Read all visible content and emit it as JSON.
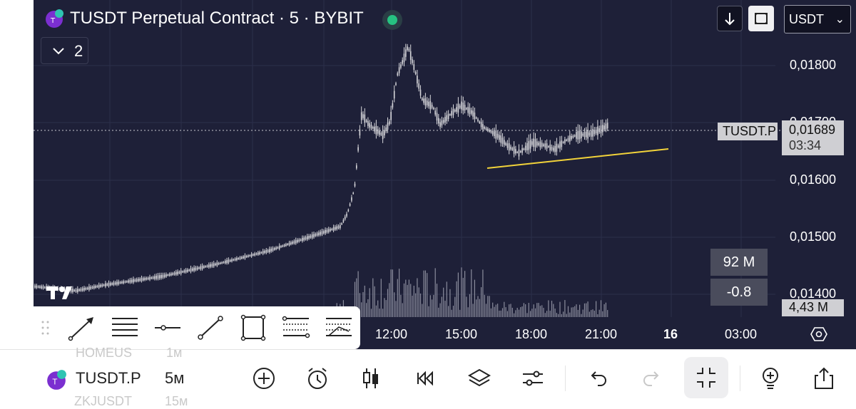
{
  "header": {
    "title": "TUSDT Perpetual Contract · 5 · BYBIT",
    "indicators_count": "2",
    "currency": "USDT"
  },
  "price_axis": {
    "labels": [
      "0,01800",
      "0,01700",
      "0,01600",
      "0,01500",
      "0,01400"
    ]
  },
  "current_price": {
    "symbol_tag": "TUSDT.P",
    "price": "0,01689",
    "countdown": "03:34"
  },
  "volume": {
    "value_box": "92 M",
    "change_box": "-0.8",
    "axis_tag": "4,43 M"
  },
  "time_axis": {
    "labels": [
      {
        "text": "12:00",
        "bold": false
      },
      {
        "text": "15:00",
        "bold": false
      },
      {
        "text": "18:00",
        "bold": false
      },
      {
        "text": "21:00",
        "bold": false
      },
      {
        "text": "16",
        "bold": true
      },
      {
        "text": "03:00",
        "bold": false
      }
    ]
  },
  "drawing_tools": [
    "trend-line",
    "horizontal-lines",
    "horizontal-ray",
    "line-segment",
    "rectangle",
    "fib-retracement",
    "fib-extension"
  ],
  "bottom_bar": {
    "symbol": "TUSDT.P",
    "timeframe": "5м",
    "ghost_symbol_above": "HOMEUS",
    "ghost_tf_above": "1м",
    "ghost_symbol_below": "ZKJUSDT",
    "ghost_tf_below": "15м"
  },
  "colors": {
    "chart_bg": "#1e2038",
    "candle": "#d8d8dc",
    "trend_line": "#f2d33a",
    "status_green": "#26c281",
    "logo_purple": "#7b2fd0"
  }
}
